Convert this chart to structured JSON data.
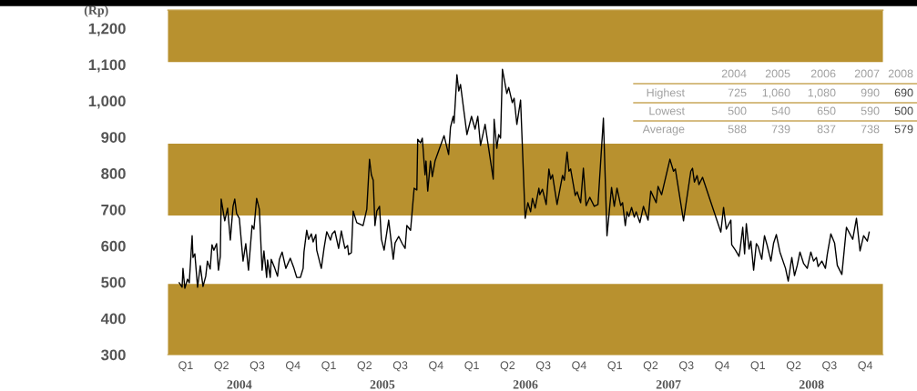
{
  "chart_data": {
    "type": "line",
    "ylabel": "(Rp)",
    "x": [
      2004.08,
      2004.1,
      2004.106,
      2004.119,
      2004.138,
      2004.15,
      2004.17,
      2004.176,
      2004.189,
      2004.208,
      2004.227,
      2004.246,
      2004.265,
      2004.277,
      2004.296,
      2004.309,
      2004.322,
      2004.341,
      2004.354,
      2004.367,
      2004.373,
      2004.398,
      2004.418,
      2004.437,
      2004.456,
      2004.468,
      2004.481,
      2004.5,
      2004.526,
      2004.545,
      2004.564,
      2004.589,
      2004.602,
      2004.621,
      2004.64,
      2004.659,
      2004.672,
      2004.691,
      2004.697,
      2004.716,
      2004.723,
      2004.748,
      2004.767,
      2004.78,
      2004.799,
      2004.825,
      2004.856,
      2004.882,
      2004.901,
      2004.927,
      2004.946,
      2004.952,
      2004.971,
      2004.984,
      2005.003,
      2005.016,
      2005.035,
      2005.041,
      2005.073,
      2005.092,
      2005.111,
      2005.137,
      2005.149,
      2005.168,
      2005.194,
      2005.213,
      2005.238,
      2005.257,
      2005.264,
      2005.283,
      2005.296,
      2005.321,
      2005.365,
      2005.391,
      2005.41,
      2005.423,
      2005.436,
      2005.448,
      2005.461,
      2005.48,
      2005.493,
      2005.512,
      2005.544,
      2005.576,
      2005.589,
      2005.614,
      2005.639,
      2005.659,
      2005.671,
      2005.697,
      2005.722,
      2005.741,
      2005.747,
      2005.766,
      2005.779,
      2005.798,
      2005.805,
      2005.817,
      2005.836,
      2005.849,
      2005.868,
      2005.931,
      2005.963,
      2005.976,
      2005.995,
      2006.001,
      2006.021,
      2006.034,
      2006.046,
      2006.091,
      2006.123,
      2006.148,
      2006.167,
      2006.186,
      2006.218,
      2006.275,
      2006.281,
      2006.3,
      2006.313,
      2006.326,
      2006.339,
      2006.37,
      2006.383,
      2006.408,
      2006.421,
      2006.44,
      2006.466,
      2006.498,
      2006.517,
      2006.536,
      2006.549,
      2006.568,
      2006.594,
      2006.6,
      2006.619,
      2006.645,
      2006.664,
      2006.676,
      2006.689,
      2006.721,
      2006.759,
      2006.772,
      2006.791,
      2006.804,
      2006.816,
      2006.848,
      2006.861,
      2006.886,
      2006.905,
      2006.924,
      2006.95,
      2006.981,
      2007.007,
      2007.045,
      2007.07,
      2007.102,
      2007.121,
      2007.14,
      2007.166,
      2007.179,
      2007.198,
      2007.21,
      2007.223,
      2007.242,
      2007.261,
      2007.274,
      2007.3,
      2007.325,
      2007.357,
      2007.376,
      2007.414,
      2007.427,
      2007.452,
      2007.51,
      2007.535,
      2007.548,
      2007.605,
      2007.656,
      2007.668,
      2007.681,
      2007.7,
      2007.713,
      2007.738,
      2007.866,
      2007.885,
      2007.904,
      2007.936,
      2007.942,
      2007.968,
      2007.993,
      2008.0,
      2008.019,
      2008.032,
      2008.044,
      2008.063,
      2008.076,
      2008.095,
      2008.114,
      2008.127,
      2008.152,
      2008.171,
      2008.19,
      2008.216,
      2008.235,
      2008.254,
      2008.279,
      2008.318,
      2008.337,
      2008.362,
      2008.381,
      2008.4,
      2008.419,
      2008.445,
      2008.47,
      2008.495,
      2008.514,
      2008.534,
      2008.546,
      2008.572,
      2008.597,
      2008.61,
      2008.635,
      2008.661,
      2008.68,
      2008.712,
      2008.744,
      2008.788,
      2008.814,
      2008.839,
      2008.864,
      2008.89,
      2008.903
    ],
    "series": [
      {
        "color": "#000000",
        "values": [
          498,
          486,
          538,
          483,
          508,
          498,
          628,
          568,
          578,
          486,
          545,
          488,
          516,
          558,
          536,
          603,
          588,
          606,
          533,
          571,
          729,
          669,
          704,
          616,
          709,
          729,
          689,
          676,
          558,
          606,
          533,
          656,
          646,
          731,
          701,
          533,
          586,
          513,
          561,
          513,
          563,
          538,
          516,
          563,
          583,
          538,
          566,
          538,
          513,
          513,
          538,
          583,
          643,
          618,
          633,
          611,
          631,
          588,
          538,
          593,
          639,
          616,
          633,
          641,
          593,
          641,
          593,
          601,
          576,
          581,
          696,
          664,
          656,
          701,
          839,
          796,
          781,
          656,
          696,
          709,
          618,
          588,
          671,
          563,
          608,
          626,
          606,
          593,
          656,
          643,
          759,
          754,
          894,
          884,
          897,
          796,
          834,
          751,
          834,
          791,
          834,
          904,
          852,
          927,
          957,
          939,
          1072,
          1027,
          1045,
          907,
          957,
          922,
          957,
          877,
          935,
          784,
          949,
          869,
          907,
          897,
          1087,
          1020,
          1037,
          995,
          1007,
          935,
          1002,
          676,
          719,
          694,
          731,
          704,
          759,
          741,
          756,
          714,
          812,
          784,
          796,
          714,
          794,
          781,
          859,
          806,
          812,
          739,
          749,
          719,
          814,
          711,
          734,
          709,
          714,
          952,
          628,
          761,
          709,
          759,
          711,
          719,
          656,
          694,
          681,
          706,
          679,
          694,
          664,
          709,
          671,
          751,
          719,
          764,
          741,
          839,
          806,
          812,
          669,
          806,
          814,
          776,
          794,
          769,
          789,
          638,
          706,
          646,
          671,
          603,
          588,
          571,
          588,
          651,
          578,
          661,
          591,
          613,
          533,
          606,
          598,
          563,
          628,
          601,
          558,
          608,
          631,
          583,
          538,
          503,
          568,
          518,
          546,
          583,
          551,
          538,
          583,
          558,
          568,
          543,
          558,
          538,
          576,
          633,
          608,
          546,
          521,
          651,
          618,
          676,
          586,
          628,
          613,
          638
        ]
      }
    ],
    "xlim": [
      2004,
      2009
    ],
    "xticks": [
      {
        "value": 2004.5,
        "label": "2004"
      },
      {
        "value": 2005.5,
        "label": "2005"
      },
      {
        "value": 2006.5,
        "label": "2006"
      },
      {
        "value": 2007.5,
        "label": "2007"
      },
      {
        "value": 2008.5,
        "label": "2008"
      }
    ],
    "ylim": [
      300,
      1250
    ],
    "yticks": [
      {
        "value": 300,
        "label": "300"
      },
      {
        "value": 400,
        "label": "400"
      },
      {
        "value": 500,
        "label": "500"
      },
      {
        "value": 600,
        "label": "600"
      },
      {
        "value": 700,
        "label": "700"
      },
      {
        "value": 800,
        "label": "800"
      },
      {
        "value": 900,
        "label": "900"
      },
      {
        "value": 1000,
        "label": "1,000"
      },
      {
        "value": 1100,
        "label": "1,100"
      },
      {
        "value": 1200,
        "label": "1,200"
      }
    ],
    "bands": [
      {
        "axis": "y",
        "from": 300,
        "to": 495,
        "color": "#b8912f"
      },
      {
        "axis": "y",
        "from": 684,
        "to": 882,
        "color": "#b8912f"
      },
      {
        "axis": "y",
        "from": 1107,
        "to": 1250,
        "color": "#b8912f"
      }
    ],
    "grid": false,
    "legend": false,
    "marker": "none",
    "line_style": "solid",
    "annotations": [
      "Q1",
      "Q2",
      "Q3",
      "Q4",
      "Q1",
      "Q2",
      "Q3",
      "Q4",
      "Q1",
      "Q2",
      "Q3",
      "Q4",
      "Q1",
      "Q2",
      "Q3",
      "Q4",
      "Q1",
      "Q2",
      "Q3",
      "Q4",
      "2004",
      "2005",
      "2006",
      "2007",
      "2008",
      "Highest",
      "725",
      "1,060",
      "1,080",
      "990",
      "690",
      "Lowest",
      "500",
      "540",
      "650",
      "590",
      "500",
      "Average",
      "588",
      "739",
      "837",
      "738",
      "579"
    ]
  }
}
